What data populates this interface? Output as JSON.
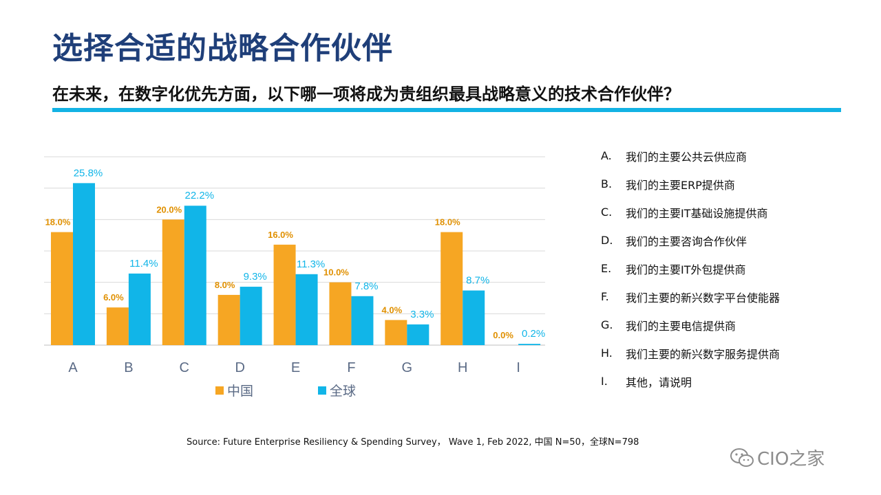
{
  "title": "选择合适的战略合作伙伴",
  "subtitle": "在未来，在数字化优先方面，以下哪一项将成为贵组织最具战略意义的技术合作伙伴？",
  "colors": {
    "accent": "#13b2e4",
    "title": "#1f3f79",
    "china": "#f6a623",
    "global": "#11b5e8"
  },
  "options": [
    {
      "letter": "A.",
      "text": "我们的主要公共云供应商"
    },
    {
      "letter": "B.",
      "text": "我们的主要ERP提供商"
    },
    {
      "letter": "C.",
      "text": "我们的主要IT基础设施提供商"
    },
    {
      "letter": "D.",
      "text": "我们的主要咨询合作伙伴"
    },
    {
      "letter": "E.",
      "text": "我们的主要IT外包提供商"
    },
    {
      "letter": "F.",
      "text": "我们主要的新兴数字平台使能器"
    },
    {
      "letter": "G.",
      "text": "我们的主要电信提供商"
    },
    {
      "letter": "H.",
      "text": "我们主要的新兴数字服务提供商"
    },
    {
      "letter": "I.",
      "text": "其他，请说明"
    }
  ],
  "source": "Source: Future Enterprise Resiliency & Spending Survey， Wave 1, Feb 2022, 中国 N=50，全球N=798",
  "watermark": {
    "text": "CIO之家",
    "icon": "wechat-icon"
  },
  "chart_data": {
    "type": "bar",
    "categories": [
      "A",
      "B",
      "C",
      "D",
      "E",
      "F",
      "G",
      "H",
      "I"
    ],
    "series": [
      {
        "name": "中国",
        "color": "#f6a623",
        "values": [
          18.0,
          6.0,
          20.0,
          8.0,
          16.0,
          10.0,
          4.0,
          18.0,
          0.0
        ],
        "labels": [
          "18.0%",
          "6.0%",
          "20.0%",
          "8.0%",
          "16.0%",
          "10.0%",
          "4.0%",
          "18.0%",
          "0.0%"
        ]
      },
      {
        "name": "全球",
        "color": "#11b5e8",
        "values": [
          25.8,
          11.4,
          22.2,
          9.3,
          11.3,
          7.8,
          3.3,
          8.7,
          0.2
        ],
        "labels": [
          "25.8%",
          "11.4%",
          "22.2%",
          "9.3%",
          "11.3%",
          "7.8%",
          "3.3%",
          "8.7%",
          "0.2%"
        ]
      }
    ],
    "ylim": [
      0,
      30
    ],
    "grid": true,
    "legend_position": "bottom"
  }
}
